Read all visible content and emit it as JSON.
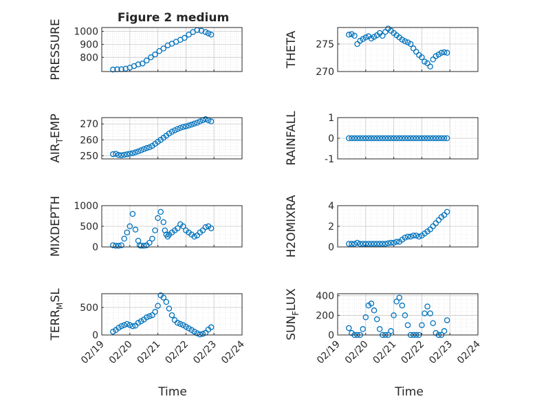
{
  "figure": {
    "title": "Figure 2 medium",
    "xlabel": "Time"
  },
  "style": {
    "marker_color": "#0072BD",
    "axis_color": "#262626",
    "grid_color": "#d9d9d9"
  },
  "chart_data": [
    {
      "type": "scatter",
      "id": "pressure",
      "ylabel": "PRESSURE",
      "ylim": [
        690,
        1030
      ],
      "yticks": [
        800,
        900,
        1000
      ],
      "yticklabels": [
        "800",
        "900",
        "1000"
      ],
      "xlim": [
        0,
        5
      ],
      "grid": true,
      "minor_grid": true,
      "legend": "none",
      "x": [
        0.4,
        0.55,
        0.7,
        0.85,
        1.0,
        1.15,
        1.3,
        1.45,
        1.6,
        1.75,
        1.9,
        2.05,
        2.2,
        2.35,
        2.5,
        2.65,
        2.8,
        2.95,
        3.1,
        3.25,
        3.4,
        3.55,
        3.7,
        3.8,
        3.9
      ],
      "y": [
        705,
        707,
        708,
        712,
        720,
        732,
        745,
        752,
        775,
        800,
        822,
        848,
        868,
        892,
        905,
        920,
        935,
        950,
        975,
        995,
        1010,
        1005,
        995,
        985,
        975
      ]
    },
    {
      "type": "scatter",
      "id": "theta",
      "ylabel": "THETA",
      "ylim": [
        270,
        278
      ],
      "yticks": [
        270,
        275
      ],
      "yticklabels": [
        "270",
        "275"
      ],
      "xlim": [
        0,
        5
      ],
      "grid": true,
      "minor_grid": true,
      "legend": "none",
      "x": [
        0.4,
        0.5,
        0.6,
        0.7,
        0.8,
        0.9,
        1.0,
        1.1,
        1.2,
        1.3,
        1.4,
        1.5,
        1.6,
        1.7,
        1.8,
        1.9,
        2.0,
        2.1,
        2.2,
        2.3,
        2.4,
        2.5,
        2.6,
        2.7,
        2.8,
        2.9,
        3.0,
        3.1,
        3.2,
        3.3,
        3.4,
        3.5,
        3.6,
        3.7,
        3.8,
        3.9
      ],
      "y": [
        276.7,
        276.8,
        276.5,
        275.0,
        275.6,
        275.9,
        276.2,
        276.4,
        276.0,
        276.3,
        276.6,
        277.0,
        276.5,
        277.2,
        277.8,
        277.4,
        277.0,
        276.6,
        276.2,
        275.8,
        275.5,
        275.3,
        275.0,
        274.2,
        273.6,
        273.0,
        272.6,
        271.8,
        271.5,
        270.9,
        272.2,
        272.8,
        273.1,
        273.4,
        273.5,
        273.4
      ]
    },
    {
      "type": "scatter",
      "id": "air_temp",
      "ylabel": "AIR_TEMP",
      "ylabel_main": "AIR",
      "ylabel_sub": "T",
      "ylabel_rest": "EMP",
      "ylim": [
        248,
        274
      ],
      "yticks": [
        250,
        260,
        270
      ],
      "yticklabels": [
        "250",
        "260",
        "270"
      ],
      "xlim": [
        0,
        5
      ],
      "grid": true,
      "minor_grid": true,
      "legend": "none",
      "x": [
        0.4,
        0.5,
        0.6,
        0.7,
        0.8,
        0.9,
        1.0,
        1.1,
        1.2,
        1.3,
        1.4,
        1.5,
        1.6,
        1.7,
        1.8,
        1.9,
        2.0,
        2.1,
        2.2,
        2.3,
        2.4,
        2.5,
        2.6,
        2.7,
        2.8,
        2.9,
        3.0,
        3.1,
        3.2,
        3.3,
        3.4,
        3.5,
        3.6,
        3.7,
        3.8,
        3.9
      ],
      "y": [
        251.0,
        251.2,
        250.5,
        250.3,
        250.6,
        250.9,
        251.3,
        251.6,
        252.1,
        252.7,
        253.4,
        254.1,
        254.8,
        255.3,
        256.2,
        257.5,
        258.8,
        260.0,
        261.3,
        262.6,
        264.0,
        265.1,
        266.0,
        266.8,
        267.5,
        268.1,
        268.5,
        269.0,
        269.6,
        270.2,
        270.8,
        271.6,
        272.4,
        273.0,
        272.3,
        271.6
      ]
    },
    {
      "type": "scatter",
      "id": "rainfall",
      "ylabel": "RAINFALL",
      "ylim": [
        -1,
        1
      ],
      "yticks": [
        -1,
        0,
        1
      ],
      "yticklabels": [
        "-1",
        "0",
        "1"
      ],
      "xlim": [
        0,
        5
      ],
      "grid": true,
      "minor_grid": true,
      "legend": "none",
      "x": [
        0.4,
        0.5,
        0.6,
        0.7,
        0.8,
        0.9,
        1.0,
        1.1,
        1.2,
        1.3,
        1.4,
        1.5,
        1.6,
        1.7,
        1.8,
        1.9,
        2.0,
        2.1,
        2.2,
        2.3,
        2.4,
        2.5,
        2.6,
        2.7,
        2.8,
        2.9,
        3.0,
        3.1,
        3.2,
        3.3,
        3.4,
        3.5,
        3.6,
        3.7,
        3.8,
        3.9
      ],
      "y": [
        0,
        0,
        0,
        0,
        0,
        0,
        0,
        0,
        0,
        0,
        0,
        0,
        0,
        0,
        0,
        0,
        0,
        0,
        0,
        0,
        0,
        0,
        0,
        0,
        0,
        0,
        0,
        0,
        0,
        0,
        0,
        0,
        0,
        0,
        0,
        0
      ]
    },
    {
      "type": "scatter",
      "id": "mixdepth",
      "ylabel": "MIXDEPTH",
      "ylim": [
        0,
        1000
      ],
      "yticks": [
        0,
        500,
        1000
      ],
      "yticklabels": [
        "0",
        "500",
        "1000"
      ],
      "xlim": [
        0,
        5
      ],
      "grid": true,
      "minor_grid": true,
      "legend": "none",
      "x": [
        0.4,
        0.5,
        0.6,
        0.7,
        0.8,
        0.9,
        1.0,
        1.1,
        1.2,
        1.3,
        1.35,
        1.4,
        1.5,
        1.6,
        1.7,
        1.8,
        1.9,
        2.0,
        2.1,
        2.2,
        2.25,
        2.3,
        2.35,
        2.4,
        2.5,
        2.6,
        2.7,
        2.8,
        2.9,
        3.0,
        3.1,
        3.2,
        3.3,
        3.4,
        3.5,
        3.6,
        3.7,
        3.8,
        3.9
      ],
      "y": [
        40,
        30,
        30,
        40,
        200,
        350,
        500,
        800,
        420,
        150,
        40,
        30,
        30,
        40,
        100,
        200,
        400,
        700,
        850,
        600,
        400,
        300,
        250,
        300,
        350,
        400,
        450,
        550,
        500,
        400,
        350,
        300,
        250,
        280,
        350,
        400,
        480,
        500,
        450
      ]
    },
    {
      "type": "scatter",
      "id": "h2omixra",
      "ylabel": "H2OMIXRA",
      "ylim": [
        0,
        4
      ],
      "yticks": [
        0,
        2,
        4
      ],
      "yticklabels": [
        "0",
        "2",
        "4"
      ],
      "xlim": [
        0,
        5
      ],
      "grid": true,
      "minor_grid": true,
      "legend": "none",
      "x": [
        0.4,
        0.5,
        0.6,
        0.7,
        0.8,
        0.9,
        1.0,
        1.1,
        1.2,
        1.3,
        1.4,
        1.5,
        1.6,
        1.7,
        1.8,
        1.9,
        2.0,
        2.1,
        2.2,
        2.3,
        2.4,
        2.5,
        2.6,
        2.7,
        2.8,
        2.9,
        3.0,
        3.1,
        3.2,
        3.3,
        3.4,
        3.5,
        3.6,
        3.7,
        3.8,
        3.9
      ],
      "y": [
        0.3,
        0.3,
        0.3,
        0.4,
        0.3,
        0.3,
        0.3,
        0.3,
        0.3,
        0.3,
        0.3,
        0.3,
        0.3,
        0.3,
        0.35,
        0.4,
        0.4,
        0.5,
        0.5,
        0.7,
        0.9,
        1.0,
        1.0,
        1.1,
        1.1,
        1.0,
        1.1,
        1.3,
        1.5,
        1.7,
        2.0,
        2.3,
        2.6,
        2.9,
        3.1,
        3.4
      ]
    },
    {
      "type": "scatter",
      "id": "terr_msl",
      "ylabel": "TERR_MSL",
      "ylabel_main": "TERR",
      "ylabel_sub": "M",
      "ylabel_rest": "SL",
      "ylim": [
        0,
        750
      ],
      "yticks": [
        0,
        500
      ],
      "yticklabels": [
        "0",
        "500"
      ],
      "xlim": [
        0,
        5
      ],
      "grid": true,
      "minor_grid": true,
      "legend": "none",
      "x": [
        0.4,
        0.5,
        0.6,
        0.7,
        0.8,
        0.9,
        1.0,
        1.1,
        1.2,
        1.3,
        1.4,
        1.5,
        1.6,
        1.7,
        1.8,
        1.9,
        2.0,
        2.1,
        2.2,
        2.3,
        2.4,
        2.5,
        2.6,
        2.7,
        2.8,
        2.9,
        3.0,
        3.1,
        3.2,
        3.3,
        3.4,
        3.5,
        3.6,
        3.7,
        3.8,
        3.9
      ],
      "y": [
        60,
        90,
        130,
        160,
        180,
        200,
        180,
        160,
        170,
        220,
        250,
        280,
        320,
        340,
        360,
        420,
        530,
        720,
        680,
        600,
        480,
        360,
        270,
        220,
        200,
        180,
        150,
        120,
        90,
        60,
        30,
        10,
        20,
        40,
        100,
        140
      ]
    },
    {
      "type": "scatter",
      "id": "sun_flux",
      "ylabel": "SUN_FLUX",
      "ylabel_main": "SUN",
      "ylabel_sub": "F",
      "ylabel_rest": "LUX",
      "ylim": [
        0,
        420
      ],
      "yticks": [
        0,
        200,
        400
      ],
      "yticklabels": [
        "0",
        "200",
        "400"
      ],
      "xlim": [
        0,
        5
      ],
      "grid": true,
      "minor_grid": true,
      "legend": "none",
      "x": [
        0.4,
        0.5,
        0.6,
        0.7,
        0.8,
        0.9,
        1.0,
        1.1,
        1.2,
        1.3,
        1.4,
        1.5,
        1.6,
        1.7,
        1.8,
        1.9,
        2.0,
        2.1,
        2.2,
        2.3,
        2.4,
        2.5,
        2.6,
        2.7,
        2.8,
        2.9,
        3.0,
        3.1,
        3.2,
        3.3,
        3.4,
        3.5,
        3.6,
        3.7,
        3.8,
        3.9
      ],
      "y": [
        70,
        20,
        0,
        0,
        0,
        60,
        180,
        300,
        320,
        250,
        160,
        60,
        0,
        0,
        0,
        40,
        200,
        340,
        380,
        300,
        200,
        100,
        0,
        0,
        0,
        0,
        100,
        220,
        290,
        220,
        120,
        20,
        0,
        0,
        40,
        150
      ]
    }
  ],
  "x_axis": {
    "ticks": [
      0,
      1,
      2,
      3,
      4,
      5
    ],
    "ticklabels": [
      "02/19",
      "02/20",
      "02/21",
      "02/22",
      "02/23",
      "02/24"
    ]
  }
}
